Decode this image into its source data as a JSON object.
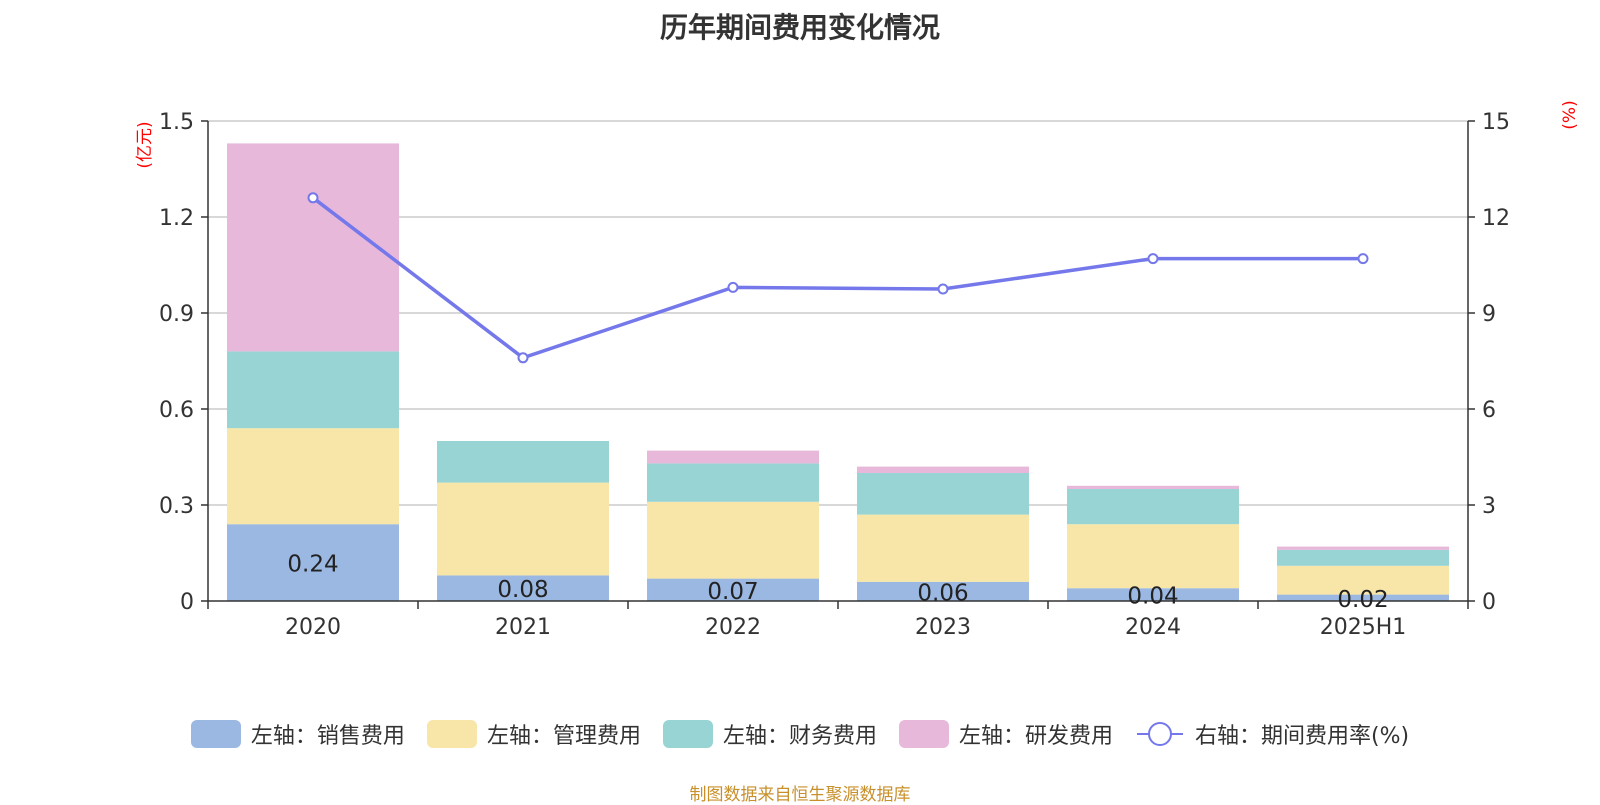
{
  "chart_data": {
    "type": "bar",
    "title": "历年期间费用变化情况",
    "categories": [
      "2020",
      "2021",
      "2022",
      "2023",
      "2024",
      "2025H1"
    ],
    "left_axis": {
      "unit": "(亿元)",
      "ylim": [
        0,
        1.5
      ],
      "ticks": [
        "0",
        "0.3",
        "0.6",
        "0.9",
        "1.2",
        "1.5"
      ]
    },
    "right_axis": {
      "unit": "(%)",
      "ylim": [
        0,
        15
      ],
      "ticks": [
        "0",
        "3",
        "6",
        "9",
        "12",
        "15"
      ]
    },
    "series": [
      {
        "name": "左轴：销售费用",
        "axis": "left",
        "stack": true,
        "color": "#9bb8e2",
        "values": [
          0.24,
          0.08,
          0.07,
          0.06,
          0.04,
          0.02
        ],
        "labels": [
          "0.24",
          "0.08",
          "0.07",
          "0.06",
          "0.04",
          "0.02"
        ]
      },
      {
        "name": "左轴：管理费用",
        "axis": "left",
        "stack": true,
        "color": "#f7e6a7",
        "values": [
          0.3,
          0.29,
          0.24,
          0.21,
          0.2,
          0.09
        ]
      },
      {
        "name": "左轴：财务费用",
        "axis": "left",
        "stack": true,
        "color": "#98d4d4",
        "values": [
          0.24,
          0.13,
          0.12,
          0.13,
          0.11,
          0.05
        ]
      },
      {
        "name": "左轴：研发费用",
        "axis": "left",
        "stack": true,
        "color": "#e7b8da",
        "values": [
          0.65,
          0.0,
          0.04,
          0.02,
          0.01,
          0.01
        ]
      },
      {
        "name": "右轴：期间费用率(%)",
        "axis": "right",
        "type": "line",
        "color": "#7478ea",
        "values": [
          12.6,
          7.6,
          9.8,
          9.75,
          10.7,
          10.7
        ]
      }
    ],
    "grid": true,
    "legend_position": "bottom",
    "source_note": "制图数据来自恒生聚源数据库"
  }
}
